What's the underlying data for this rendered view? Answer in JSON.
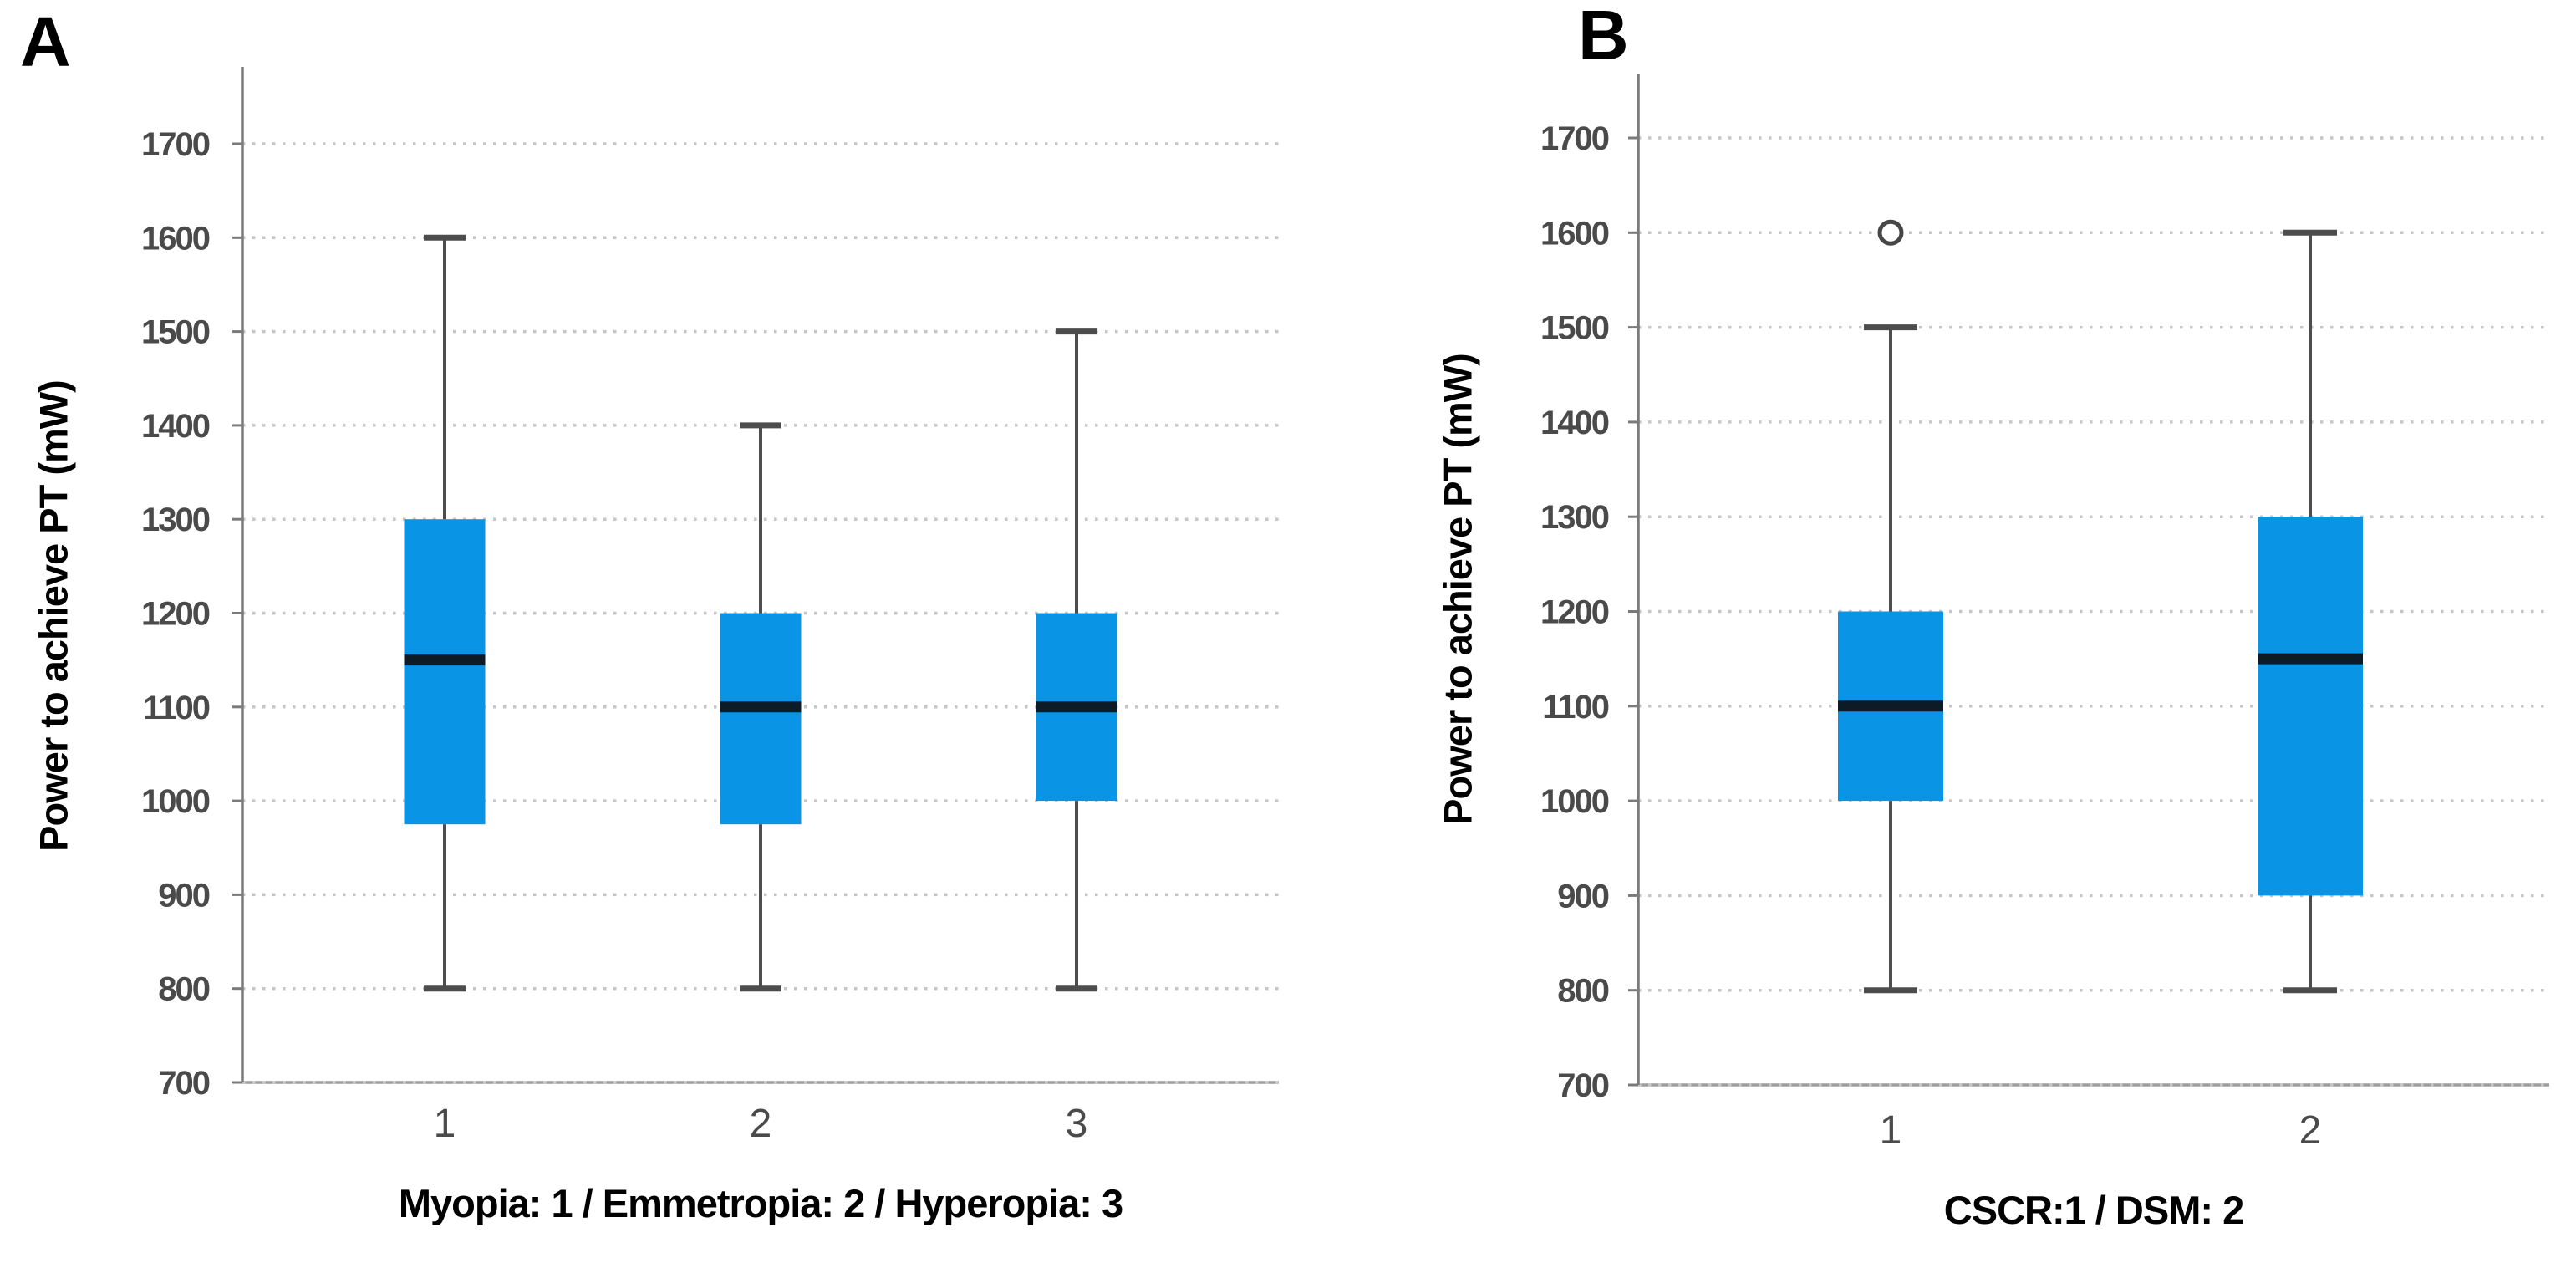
{
  "figure": {
    "background": "#ffffff",
    "panels": [
      {
        "letter": "A",
        "y_axis_title": "Power to achieve PT (mW)",
        "x_axis_title": "Myopia: 1 / Emmetropia: 2 / Hyperopia: 3"
      },
      {
        "letter": "B",
        "y_axis_title": "Power to achieve PT (mW)",
        "x_axis_title": "CSCR:1 / DSM: 2"
      }
    ],
    "colors": {
      "box_fill": "#0994e6",
      "median_line": "#0c1b26",
      "whisker": "#4d4d4d",
      "outlier_stroke": "#474747",
      "axis_line": "#7a7a7a",
      "bottom_axis_line": "#9e9e9e",
      "gridline": "#c6c6c6",
      "tick_label": "#4a4a4a",
      "axis_title": "#000000"
    }
  },
  "chart_data": [
    {
      "type": "boxplot",
      "panel": "A",
      "title": "",
      "ylabel": "Power to achieve PT (mW)",
      "xlabel": "Myopia: 1 / Emmetropia: 2 / Hyperopia: 3",
      "categories": [
        "1",
        "2",
        "3"
      ],
      "ylim": [
        700,
        1700
      ],
      "yticks": [
        700,
        800,
        900,
        1000,
        1100,
        1200,
        1300,
        1400,
        1500,
        1600,
        1700
      ],
      "grid": "horizontal-dotted",
      "legend": "none",
      "boxes": [
        {
          "category": "1",
          "group": "Myopia",
          "whisker_low": 800,
          "q1": 975,
          "median": 1150,
          "q3": 1300,
          "whisker_high": 1600,
          "outliers": []
        },
        {
          "category": "2",
          "group": "Emmetropia",
          "whisker_low": 800,
          "q1": 975,
          "median": 1100,
          "q3": 1200,
          "whisker_high": 1400,
          "outliers": []
        },
        {
          "category": "3",
          "group": "Hyperopia",
          "whisker_low": 800,
          "q1": 1000,
          "median": 1100,
          "q3": 1200,
          "whisker_high": 1500,
          "outliers": []
        }
      ]
    },
    {
      "type": "boxplot",
      "panel": "B",
      "title": "",
      "ylabel": "Power to achieve PT (mW)",
      "xlabel": "CSCR:1 / DSM: 2",
      "categories": [
        "1",
        "2"
      ],
      "ylim": [
        700,
        1700
      ],
      "yticks": [
        700,
        800,
        900,
        1000,
        1100,
        1200,
        1300,
        1400,
        1500,
        1600,
        1700
      ],
      "grid": "horizontal-dotted",
      "legend": "none",
      "boxes": [
        {
          "category": "1",
          "group": "CSCR",
          "whisker_low": 800,
          "q1": 1000,
          "median": 1100,
          "q3": 1200,
          "whisker_high": 1500,
          "outliers": [
            1600
          ]
        },
        {
          "category": "2",
          "group": "DSM",
          "whisker_low": 800,
          "q1": 900,
          "median": 1150,
          "q3": 1300,
          "whisker_high": 1600,
          "outliers": []
        }
      ]
    }
  ]
}
